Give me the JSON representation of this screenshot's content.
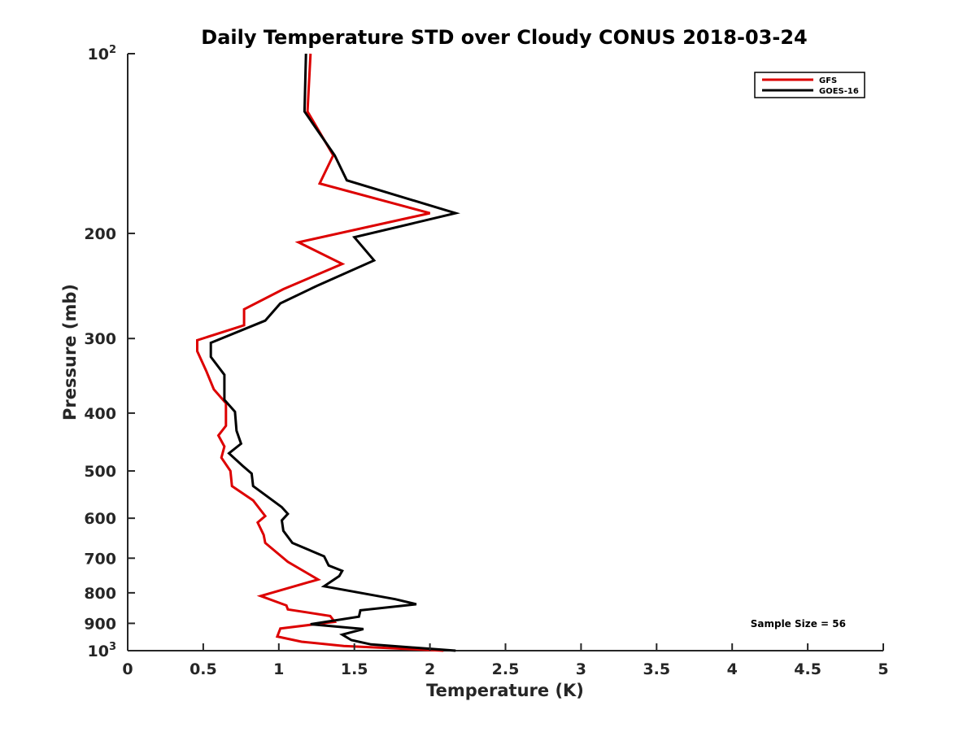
{
  "chart_data": {
    "type": "line",
    "title": "Daily Temperature STD over Cloudy CONUS 2018-03-24",
    "xlabel": "Temperature (K)",
    "ylabel": "Pressure (mb)",
    "xlim": [
      0,
      5
    ],
    "ylim": [
      100,
      1000
    ],
    "y_scale": "log",
    "y_reversed": true,
    "grid": false,
    "legend_position": "top-right",
    "x_ticks": [
      "0",
      "0.5",
      "1",
      "1.5",
      "2",
      "2.5",
      "3",
      "3.5",
      "4",
      "4.5",
      "5"
    ],
    "y_ticks": [
      {
        "value": 100,
        "base": "10",
        "exp": "2"
      },
      {
        "value": 200,
        "label": "200"
      },
      {
        "value": 300,
        "label": "300"
      },
      {
        "value": 400,
        "label": "400"
      },
      {
        "value": 500,
        "label": "500"
      },
      {
        "value": 600,
        "label": "600"
      },
      {
        "value": 700,
        "label": "700"
      },
      {
        "value": 800,
        "label": "800"
      },
      {
        "value": 900,
        "label": "900"
      },
      {
        "value": 1000,
        "base": "10",
        "exp": "3"
      }
    ],
    "annotation": "Sample Size = 56",
    "series": [
      {
        "name": "GFS",
        "color": "#dd0000",
        "points": [
          [
            1.21,
            100
          ],
          [
            1.19,
            125
          ],
          [
            1.36,
            148
          ],
          [
            1.27,
            165
          ],
          [
            2.0,
            185
          ],
          [
            1.13,
            207
          ],
          [
            1.42,
            225
          ],
          [
            1.03,
            248
          ],
          [
            0.77,
            268
          ],
          [
            0.77,
            285
          ],
          [
            0.46,
            302
          ],
          [
            0.46,
            315
          ],
          [
            0.52,
            340
          ],
          [
            0.57,
            365
          ],
          [
            0.65,
            385
          ],
          [
            0.65,
            420
          ],
          [
            0.6,
            436
          ],
          [
            0.64,
            455
          ],
          [
            0.62,
            475
          ],
          [
            0.68,
            500
          ],
          [
            0.69,
            530
          ],
          [
            0.83,
            560
          ],
          [
            0.91,
            595
          ],
          [
            0.86,
            610
          ],
          [
            0.9,
            640
          ],
          [
            0.91,
            660
          ],
          [
            1.06,
            710
          ],
          [
            1.26,
            760
          ],
          [
            0.88,
            810
          ],
          [
            1.05,
            840
          ],
          [
            1.06,
            853
          ],
          [
            1.34,
            875
          ],
          [
            1.37,
            895
          ],
          [
            1.01,
            918
          ],
          [
            0.99,
            947
          ],
          [
            1.15,
            966
          ],
          [
            1.43,
            982
          ],
          [
            2.09,
            1000
          ]
        ]
      },
      {
        "name": "GOES-16",
        "color": "#000000",
        "points": [
          [
            1.18,
            100
          ],
          [
            1.17,
            125
          ],
          [
            1.37,
            148
          ],
          [
            1.45,
            163
          ],
          [
            2.17,
            185
          ],
          [
            1.5,
            203
          ],
          [
            1.63,
            222
          ],
          [
            1.25,
            245
          ],
          [
            1.01,
            262
          ],
          [
            0.91,
            280
          ],
          [
            0.55,
            305
          ],
          [
            0.55,
            322
          ],
          [
            0.64,
            345
          ],
          [
            0.64,
            380
          ],
          [
            0.71,
            398
          ],
          [
            0.72,
            428
          ],
          [
            0.75,
            450
          ],
          [
            0.67,
            467
          ],
          [
            0.76,
            490
          ],
          [
            0.82,
            505
          ],
          [
            0.83,
            530
          ],
          [
            1.02,
            575
          ],
          [
            1.06,
            590
          ],
          [
            1.02,
            605
          ],
          [
            1.03,
            630
          ],
          [
            1.09,
            660
          ],
          [
            1.3,
            695
          ],
          [
            1.33,
            720
          ],
          [
            1.42,
            735
          ],
          [
            1.4,
            750
          ],
          [
            1.3,
            780
          ],
          [
            1.77,
            820
          ],
          [
            1.91,
            836
          ],
          [
            1.54,
            856
          ],
          [
            1.53,
            877
          ],
          [
            1.21,
            903
          ],
          [
            1.56,
            920
          ],
          [
            1.42,
            940
          ],
          [
            1.48,
            960
          ],
          [
            1.61,
            976
          ],
          [
            2.17,
            1000
          ]
        ]
      }
    ]
  }
}
